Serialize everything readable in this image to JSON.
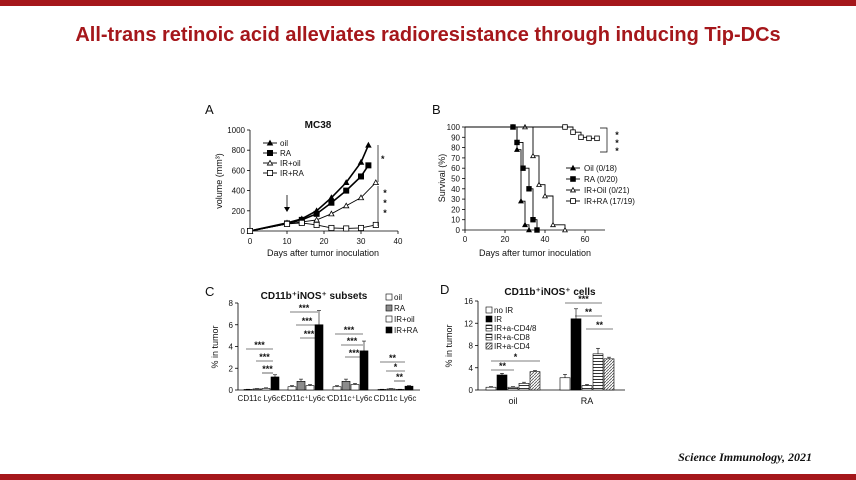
{
  "slide": {
    "title": "All-trans retinoic acid alleviates radioresistance through inducing Tip-DCs",
    "citation": "Science Immunology, 2021",
    "accent_color": "#a5171b"
  },
  "panels": {
    "A": {
      "letter": "A"
    },
    "B": {
      "letter": "B"
    },
    "C": {
      "letter": "C"
    },
    "D": {
      "letter": "D"
    }
  },
  "chart_data": [
    {
      "panel": "A",
      "type": "line",
      "title": "MC38",
      "xlabel": "Days after tumor inoculation",
      "ylabel": "volume (mm³)",
      "xlim": [
        0,
        40
      ],
      "ylim": [
        0,
        1000
      ],
      "xticks": [
        "0",
        "10",
        "20",
        "30",
        "40"
      ],
      "yticks": [
        "0",
        "200",
        "400",
        "600",
        "800",
        "1000"
      ],
      "annotation": "arrow at day 10",
      "series": [
        {
          "name": "oil",
          "marker": "triangle-filled",
          "x": [
            0,
            10,
            14,
            18,
            22,
            26,
            30,
            32
          ],
          "y": [
            0,
            80,
            120,
            200,
            330,
            480,
            680,
            850
          ]
        },
        {
          "name": "RA",
          "marker": "square-filled",
          "x": [
            0,
            10,
            14,
            18,
            22,
            26,
            30,
            32
          ],
          "y": [
            0,
            75,
            110,
            170,
            280,
            400,
            540,
            650
          ]
        },
        {
          "name": "IR+oil",
          "marker": "triangle-open",
          "x": [
            0,
            10,
            14,
            18,
            22,
            26,
            30,
            34
          ],
          "y": [
            0,
            70,
            90,
            110,
            170,
            250,
            330,
            480
          ]
        },
        {
          "name": "IR+RA",
          "marker": "square-open",
          "x": [
            0,
            10,
            14,
            18,
            22,
            26,
            30,
            34
          ],
          "y": [
            0,
            70,
            80,
            60,
            30,
            25,
            30,
            60
          ]
        }
      ],
      "significance": [
        "*",
        "***"
      ]
    },
    {
      "panel": "B",
      "type": "line",
      "title": "",
      "xlabel": "Days after tumor inoculation",
      "ylabel": "Survival (%)",
      "xlim": [
        0,
        70
      ],
      "ylim": [
        0,
        100
      ],
      "xticks": [
        "0",
        "20",
        "40",
        "60"
      ],
      "yticks": [
        "0",
        "10",
        "20",
        "30",
        "40",
        "50",
        "60",
        "70",
        "80",
        "90",
        "100"
      ],
      "series": [
        {
          "name": "Oil (0/18)",
          "marker": "triangle-filled",
          "x": [
            0,
            24,
            26,
            28,
            30,
            32
          ],
          "y": [
            100,
            100,
            78,
            28,
            5,
            0
          ]
        },
        {
          "name": "RA (0/20)",
          "marker": "square-filled",
          "x": [
            0,
            24,
            26,
            29,
            32,
            34,
            36
          ],
          "y": [
            100,
            100,
            85,
            60,
            40,
            10,
            0
          ]
        },
        {
          "name": "IR+Oil (0/21)",
          "marker": "triangle-open",
          "x": [
            0,
            30,
            34,
            37,
            40,
            44,
            50
          ],
          "y": [
            100,
            100,
            72,
            44,
            33,
            5,
            0
          ]
        },
        {
          "name": "IR+RA (17/19)",
          "marker": "square-open",
          "x": [
            0,
            50,
            54,
            58,
            62,
            66
          ],
          "y": [
            100,
            100,
            95,
            90,
            89,
            89
          ]
        }
      ],
      "significance": [
        "***"
      ]
    },
    {
      "panel": "C",
      "type": "bar",
      "title": "CD11b⁺iNOS⁺ subsets",
      "ylabel": "% in tumor",
      "ylim": [
        0,
        8
      ],
      "yticks": [
        "0",
        "2",
        "4",
        "6",
        "8"
      ],
      "categories": [
        "CD11c",
        "Ly6c⁺",
        "CD11c⁺Ly6c⁺",
        "CD11c⁺Ly6c",
        "CD11c",
        "Ly6c"
      ],
      "groups": [
        {
          "label": "CD11c Ly6c⁺",
          "values": [
            0.05,
            0.1,
            0.15,
            1.2
          ],
          "errors": [
            0.02,
            0.03,
            0.05,
            0.2
          ]
        },
        {
          "label": "CD11c⁺Ly6c⁺",
          "values": [
            0.3,
            0.8,
            0.4,
            6.0
          ],
          "errors": [
            0.1,
            0.2,
            0.1,
            1.3
          ]
        },
        {
          "label": "CD11c⁺Ly6c",
          "values": [
            0.3,
            0.8,
            0.5,
            3.6
          ],
          "errors": [
            0.1,
            0.2,
            0.1,
            0.9
          ]
        },
        {
          "label": "CD11c Ly6c",
          "values": [
            0.05,
            0.1,
            0.05,
            0.35
          ],
          "errors": [
            0.02,
            0.03,
            0.02,
            0.05
          ]
        }
      ],
      "group_labels": [
        "CD11c Ly6c⁺",
        "CD11c⁺Ly6c⁺",
        "CD11c⁺Ly6c",
        "CD11c Ly6c"
      ],
      "series": [
        {
          "name": "oil",
          "color": "#ffffff"
        },
        {
          "name": "RA",
          "color": "#7f7f7f"
        },
        {
          "name": "IR+oil",
          "color": "#ffffff"
        },
        {
          "name": "IR+RA",
          "color": "#000000"
        }
      ],
      "significance": [
        "***",
        "***",
        "***",
        "***",
        "***",
        "***",
        "***",
        "***",
        "***",
        "**",
        "*",
        "**"
      ]
    },
    {
      "panel": "D",
      "type": "bar",
      "title": "CD11b⁺iNOS⁺ cells",
      "ylabel": "% in tumor",
      "ylim": [
        0,
        16
      ],
      "yticks": [
        "0",
        "4",
        "8",
        "12",
        "16"
      ],
      "group_labels": [
        "oil",
        "RA"
      ],
      "series": [
        {
          "name": "no IR",
          "values": [
            0.5,
            2.2
          ],
          "errors": [
            0.1,
            0.6
          ]
        },
        {
          "name": "IR",
          "values": [
            2.7,
            12.8
          ],
          "errors": [
            0.3,
            1.8
          ]
        },
        {
          "name": "IR+a-CD4/8",
          "values": [
            0.5,
            0.8
          ],
          "errors": [
            0.1,
            0.2
          ]
        },
        {
          "name": "IR+a-CD8",
          "values": [
            1.2,
            6.5
          ],
          "errors": [
            0.2,
            1.0
          ]
        },
        {
          "name": "IR+a-CD4",
          "values": [
            3.3,
            5.6
          ],
          "errors": [
            0.2,
            0.3
          ]
        }
      ],
      "significance": [
        "**",
        "*",
        "***",
        "**",
        "**"
      ]
    }
  ]
}
